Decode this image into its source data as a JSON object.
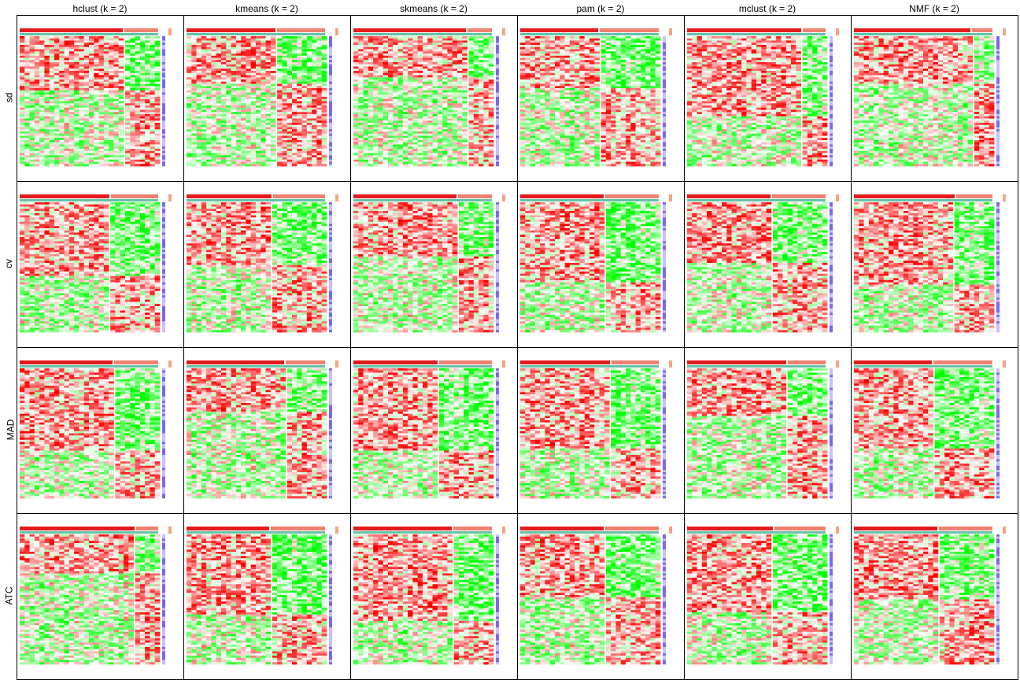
{
  "chart_data": {
    "type": "heatmap",
    "column_titles": [
      "hclust (k = 2)",
      "kmeans (k = 2)",
      "skmeans (k = 2)",
      "pam (k = 2)",
      "mclust (k = 2)",
      "NMF (k = 2)"
    ],
    "row_titles": [
      "sd",
      "cv",
      "MAD",
      "ATC"
    ],
    "grid": false,
    "colors": {
      "high": "#ff0000",
      "mid": "#ffffff",
      "low": "#00ff00",
      "annotation_class": "#e41a1c",
      "annotation_silhouette": "#66c2a5",
      "row_annotation": "#7b68ee"
    }
  }
}
